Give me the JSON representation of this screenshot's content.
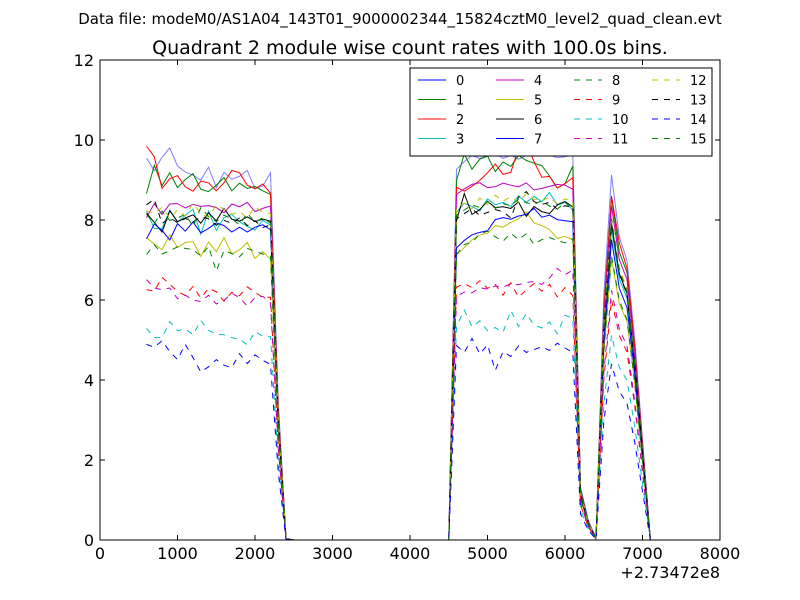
{
  "figure": {
    "suptitle": "Data file: modeM0/AS1A04_143T01_9000002344_15824cztM0_level2_quad_clean.evt"
  },
  "chart_data": {
    "type": "line",
    "title": "Quadrant 2 module wise count rates with 100.0s bins.",
    "xlabel": "",
    "ylabel": "",
    "x_offset_label": "+2.73472e8",
    "xlim": [
      0,
      8000
    ],
    "ylim": [
      0,
      12
    ],
    "x_ticks": [
      0,
      1000,
      2000,
      3000,
      4000,
      5000,
      6000,
      7000,
      8000
    ],
    "y_ticks": [
      0,
      2,
      4,
      6,
      8,
      10,
      12
    ],
    "grid": false,
    "legend_position": "top-right",
    "legend_columns": 4,
    "x": [
      600,
      700,
      800,
      900,
      1000,
      1100,
      1200,
      1300,
      1400,
      1500,
      1600,
      1700,
      1800,
      1900,
      2000,
      2100,
      2200,
      2300,
      2400,
      2500,
      2600,
      2700,
      2800,
      2900,
      3000,
      3100,
      3200,
      3300,
      3400,
      3500,
      3600,
      3700,
      3800,
      3900,
      4000,
      4100,
      4200,
      4300,
      4400,
      4500,
      4600,
      4700,
      4800,
      4900,
      5000,
      5100,
      5200,
      5300,
      5400,
      5500,
      5600,
      5700,
      5800,
      5900,
      6000,
      6100,
      6200,
      6300,
      6400,
      6500,
      6600,
      6700,
      6800,
      6900,
      7000,
      7100
    ],
    "series": [
      {
        "name": "0",
        "color": "#0000ff",
        "dash": "solid",
        "values": [
          9.55,
          9.23,
          9.57,
          9.8,
          9.35,
          9.2,
          9.12,
          9.0,
          9.32,
          8.81,
          9.19,
          9.02,
          9.09,
          9.24,
          8.78,
          8.85,
          9.18,
          3.44,
          0.03,
          0.0,
          0.0,
          0.0,
          0.0,
          0.0,
          0.0,
          0.0,
          0.0,
          0.0,
          0.0,
          0.0,
          0.0,
          0.0,
          0.0,
          0.0,
          0.0,
          0.0,
          0.0,
          0.0,
          0.0,
          0.0,
          9.27,
          9.46,
          9.61,
          9.54,
          9.6,
          9.67,
          9.54,
          9.62,
          9.52,
          9.61,
          9.65,
          9.6,
          9.62,
          9.56,
          9.58,
          9.63,
          1.33,
          0.49,
          0.05,
          6.11,
          9.13,
          7.58,
          6.99,
          4.99,
          2.48,
          0.03
        ]
      },
      {
        "name": "1",
        "color": "#008000",
        "dash": "solid",
        "values": [
          8.66,
          9.37,
          8.86,
          9.18,
          8.81,
          9.01,
          9.16,
          8.77,
          8.71,
          8.87,
          9.06,
          8.73,
          8.92,
          8.79,
          8.84,
          8.73,
          8.64,
          3.22,
          0.03,
          0.0,
          0.0,
          0.0,
          0.0,
          0.0,
          0.0,
          0.0,
          0.0,
          0.0,
          0.0,
          0.0,
          0.0,
          0.0,
          0.0,
          0.0,
          0.0,
          0.0,
          0.0,
          0.0,
          0.0,
          0.0,
          8.99,
          9.65,
          9.27,
          9.52,
          9.6,
          9.21,
          9.45,
          9.34,
          9.61,
          9.49,
          9.42,
          9.36,
          9.1,
          8.8,
          8.91,
          9.35,
          1.28,
          0.46,
          0.04,
          5.73,
          8.57,
          7.2,
          6.69,
          4.77,
          2.39,
          0.03
        ]
      },
      {
        "name": "2",
        "color": "#ff0000",
        "dash": "solid",
        "values": [
          9.85,
          9.58,
          8.79,
          9.03,
          9.11,
          8.83,
          8.72,
          8.97,
          8.93,
          8.73,
          8.93,
          9.24,
          9.18,
          8.87,
          8.78,
          8.9,
          8.67,
          3.26,
          0.03,
          0.0,
          0.0,
          0.0,
          0.0,
          0.0,
          0.0,
          0.0,
          0.0,
          0.0,
          0.0,
          0.0,
          0.0,
          0.0,
          0.0,
          0.0,
          0.0,
          0.0,
          0.0,
          0.0,
          0.0,
          0.0,
          8.82,
          8.72,
          8.84,
          8.99,
          9.18,
          9.4,
          9.14,
          9.19,
          9.79,
          9.92,
          9.46,
          9.07,
          9.09,
          8.8,
          8.91,
          9.06,
          1.24,
          0.45,
          0.04,
          5.72,
          8.6,
          7.43,
          6.79,
          4.81,
          2.41,
          0.03
        ]
      },
      {
        "name": "3",
        "color": "#00bfbf",
        "dash": "solid",
        "values": [
          8.23,
          7.79,
          7.78,
          8.25,
          7.94,
          8.12,
          8.27,
          7.65,
          8.22,
          7.74,
          8.06,
          8.14,
          7.96,
          7.84,
          7.75,
          7.99,
          7.87,
          2.95,
          0.03,
          0.0,
          0.0,
          0.0,
          0.0,
          0.0,
          0.0,
          0.0,
          0.0,
          0.0,
          0.0,
          0.0,
          0.0,
          0.0,
          0.0,
          0.0,
          0.0,
          0.0,
          0.0,
          0.0,
          0.0,
          0.0,
          8.2,
          8.42,
          8.34,
          8.23,
          8.53,
          8.38,
          8.44,
          8.34,
          8.6,
          8.44,
          8.59,
          8.46,
          8.69,
          8.37,
          8.44,
          8.25,
          1.15,
          0.42,
          0.04,
          5.18,
          7.77,
          6.53,
          6.04,
          4.3,
          2.16,
          0.02
        ]
      },
      {
        "name": "4",
        "color": "#bf00bf",
        "dash": "solid",
        "values": [
          8.06,
          8.41,
          8.14,
          8.4,
          8.41,
          8.3,
          8.39,
          8.34,
          8.36,
          8.31,
          8.18,
          8.4,
          8.33,
          8.44,
          8.21,
          8.29,
          8.35,
          3.12,
          0.03,
          0.0,
          0.0,
          0.0,
          0.0,
          0.0,
          0.0,
          0.0,
          0.0,
          0.0,
          0.0,
          0.0,
          0.0,
          0.0,
          0.0,
          0.0,
          0.0,
          0.0,
          0.0,
          0.0,
          0.0,
          0.0,
          8.64,
          8.78,
          8.89,
          8.93,
          8.81,
          8.83,
          8.92,
          8.87,
          8.83,
          8.93,
          8.75,
          8.79,
          8.84,
          8.89,
          8.87,
          8.77,
          1.21,
          0.44,
          0.04,
          5.49,
          8.36,
          7.01,
          6.51,
          4.61,
          2.32,
          0.03
        ]
      },
      {
        "name": "5",
        "color": "#bfbf00",
        "dash": "solid",
        "values": [
          7.56,
          7.4,
          7.26,
          7.63,
          7.31,
          7.44,
          7.46,
          7.09,
          7.45,
          7.21,
          7.56,
          7.15,
          7.25,
          7.44,
          7.04,
          7.21,
          7.02,
          2.71,
          0.03,
          0.0,
          0.0,
          0.0,
          0.0,
          0.0,
          0.0,
          0.0,
          0.0,
          0.0,
          0.0,
          0.0,
          0.0,
          0.0,
          0.0,
          0.0,
          0.0,
          0.0,
          0.0,
          0.0,
          0.0,
          0.0,
          7.13,
          7.31,
          7.51,
          7.62,
          7.67,
          7.86,
          7.82,
          7.94,
          8.03,
          8.2,
          7.93,
          7.86,
          7.76,
          7.54,
          7.59,
          7.51,
          1.04,
          0.38,
          0.04,
          4.68,
          7.04,
          5.91,
          5.47,
          3.9,
          1.95,
          0.02
        ]
      },
      {
        "name": "6",
        "color": "#000000",
        "dash": "solid",
        "values": [
          8.17,
          7.94,
          7.7,
          8.23,
          7.96,
          8.05,
          8.13,
          7.92,
          8.18,
          7.98,
          8.29,
          8.02,
          7.97,
          8.08,
          7.96,
          8.02,
          7.97,
          2.98,
          0.03,
          0.0,
          0.0,
          0.0,
          0.0,
          0.0,
          0.0,
          0.0,
          0.0,
          0.0,
          0.0,
          0.0,
          0.0,
          0.0,
          0.0,
          0.0,
          0.0,
          0.0,
          0.0,
          0.0,
          0.0,
          0.0,
          7.98,
          8.66,
          8.14,
          8.26,
          8.47,
          8.31,
          8.33,
          8.29,
          8.45,
          8.09,
          8.34,
          8.21,
          8.16,
          8.38,
          8.46,
          8.33,
          1.15,
          0.42,
          0.04,
          5.27,
          7.92,
          6.66,
          6.16,
          4.38,
          2.2,
          0.02
        ]
      },
      {
        "name": "7",
        "color": "#0000ff",
        "dash": "solid",
        "values": [
          7.53,
          7.9,
          7.74,
          7.5,
          7.91,
          7.72,
          7.95,
          7.68,
          7.79,
          7.93,
          7.86,
          7.7,
          7.82,
          7.7,
          7.82,
          7.88,
          7.76,
          2.91,
          0.03,
          0.0,
          0.0,
          0.0,
          0.0,
          0.0,
          0.0,
          0.0,
          0.0,
          0.0,
          0.0,
          0.0,
          0.0,
          0.0,
          0.0,
          0.0,
          0.0,
          0.0,
          0.0,
          0.0,
          0.0,
          0.0,
          7.3,
          7.49,
          7.63,
          7.69,
          7.73,
          8.01,
          8.06,
          8.02,
          8.1,
          8.14,
          8.29,
          8.07,
          8.12,
          8.01,
          7.98,
          7.96,
          1.08,
          0.4,
          0.04,
          4.86,
          7.51,
          6.3,
          5.81,
          4.14,
          2.07,
          0.02
        ]
      },
      {
        "name": "8",
        "color": "#008000",
        "dash": "dashed",
        "values": [
          7.14,
          7.38,
          7.15,
          7.23,
          7.33,
          7.29,
          7.26,
          7.1,
          7.34,
          6.72,
          7.24,
          7.16,
          7.08,
          7.29,
          7.22,
          7.15,
          7.1,
          2.68,
          0.03,
          0.0,
          0.0,
          0.0,
          0.0,
          0.0,
          0.0,
          0.0,
          0.0,
          0.0,
          0.0,
          0.0,
          0.0,
          0.0,
          0.0,
          0.0,
          0.0,
          0.0,
          0.0,
          0.0,
          0.0,
          0.0,
          7.13,
          7.39,
          7.44,
          7.65,
          7.72,
          7.58,
          7.47,
          7.67,
          7.51,
          7.66,
          7.39,
          7.51,
          7.56,
          7.49,
          7.43,
          7.53,
          1.03,
          0.38,
          0.04,
          4.7,
          7.1,
          5.99,
          5.51,
          3.91,
          1.96,
          0.02
        ]
      },
      {
        "name": "9",
        "color": "#ff0000",
        "dash": "dashed",
        "values": [
          6.26,
          6.22,
          6.57,
          6.39,
          6.22,
          6.11,
          6.34,
          6.05,
          6.29,
          6.21,
          5.97,
          6.19,
          6.11,
          6.33,
          6.19,
          6.07,
          6.07,
          2.31,
          0.02,
          0.0,
          0.0,
          0.0,
          0.0,
          0.0,
          0.0,
          0.0,
          0.0,
          0.0,
          0.0,
          0.0,
          0.0,
          0.0,
          0.0,
          0.0,
          0.0,
          0.0,
          0.0,
          0.0,
          0.0,
          0.0,
          6.32,
          6.41,
          6.31,
          6.48,
          6.29,
          6.39,
          6.12,
          6.43,
          6.07,
          6.25,
          6.41,
          6.22,
          6.39,
          6.08,
          6.31,
          6.11,
          0.88,
          0.32,
          0.03,
          4.02,
          6.01,
          5.11,
          4.7,
          3.35,
          1.68,
          0.02
        ]
      },
      {
        "name": "10",
        "color": "#00bfbf",
        "dash": "dashed",
        "values": [
          5.29,
          5.06,
          5.06,
          5.46,
          5.23,
          5.28,
          5.13,
          5.49,
          5.24,
          5.14,
          5.13,
          5.06,
          5.02,
          4.88,
          5.21,
          5.09,
          5.08,
          1.93,
          0.02,
          0.0,
          0.0,
          0.0,
          0.0,
          0.0,
          0.0,
          0.0,
          0.0,
          0.0,
          0.0,
          0.0,
          0.0,
          0.0,
          0.0,
          0.0,
          0.0,
          0.0,
          0.0,
          0.0,
          0.0,
          0.0,
          5.34,
          5.75,
          5.33,
          5.48,
          5.23,
          5.31,
          5.19,
          5.74,
          5.34,
          5.66,
          5.38,
          5.3,
          5.45,
          5.16,
          5.62,
          5.54,
          0.75,
          0.28,
          0.03,
          3.39,
          5.12,
          4.32,
          3.99,
          2.83,
          1.42,
          0.02
        ]
      },
      {
        "name": "11",
        "color": "#bf00bf",
        "dash": "dashed",
        "values": [
          6.51,
          6.3,
          6.26,
          6.3,
          6.03,
          6.12,
          6.0,
          5.96,
          6.12,
          5.9,
          5.99,
          6.17,
          6.06,
          5.85,
          6.06,
          6.09,
          5.93,
          2.27,
          0.02,
          0.0,
          0.0,
          0.0,
          0.0,
          0.0,
          0.0,
          0.0,
          0.0,
          0.0,
          0.0,
          0.0,
          0.0,
          0.0,
          0.0,
          0.0,
          0.0,
          0.0,
          0.0,
          0.0,
          0.0,
          0.0,
          6.09,
          6.2,
          6.18,
          6.31,
          6.27,
          6.35,
          6.32,
          6.41,
          6.38,
          6.44,
          6.46,
          6.39,
          6.55,
          6.79,
          6.63,
          6.75,
          0.92,
          0.34,
          0.03,
          4.18,
          6.24,
          5.28,
          4.85,
          3.46,
          1.73,
          0.02
        ]
      },
      {
        "name": "12",
        "color": "#bfbf00",
        "dash": "dashed",
        "values": [
          8.23,
          8.17,
          8.31,
          8.04,
          8.25,
          8.1,
          8.42,
          8.16,
          8.07,
          8.38,
          8.27,
          8.14,
          8.21,
          8.05,
          8.33,
          8.2,
          8.16,
          3.05,
          0.03,
          0.0,
          0.0,
          0.0,
          0.0,
          0.0,
          0.0,
          0.0,
          0.0,
          0.0,
          0.0,
          0.0,
          0.0,
          0.0,
          0.0,
          0.0,
          0.0,
          0.0,
          0.0,
          0.0,
          0.0,
          0.0,
          8.31,
          8.42,
          8.28,
          8.55,
          8.39,
          8.62,
          8.47,
          8.58,
          8.44,
          8.66,
          8.52,
          8.48,
          8.57,
          8.41,
          8.53,
          8.46,
          1.17,
          0.43,
          0.04,
          5.36,
          8.07,
          6.81,
          6.28,
          4.46,
          2.24,
          0.02
        ]
      },
      {
        "name": "13",
        "color": "#000000",
        "dash": "dashed",
        "values": [
          8.38,
          8.52,
          7.91,
          8.06,
          7.93,
          8.04,
          7.95,
          8.08,
          8.03,
          7.87,
          7.99,
          7.92,
          8.05,
          7.86,
          7.98,
          7.81,
          7.88,
          2.97,
          0.03,
          0.0,
          0.0,
          0.0,
          0.0,
          0.0,
          0.0,
          0.0,
          0.0,
          0.0,
          0.0,
          0.0,
          0.0,
          0.0,
          0.0,
          0.0,
          0.0,
          0.0,
          0.0,
          0.0,
          0.0,
          0.0,
          8.03,
          8.16,
          8.28,
          8.11,
          8.19,
          8.26,
          8.21,
          8.05,
          8.57,
          8.71,
          8.46,
          8.39,
          8.44,
          8.27,
          8.36,
          8.31,
          1.15,
          0.42,
          0.04,
          5.24,
          7.9,
          6.64,
          6.14,
          4.37,
          2.19,
          0.02
        ]
      },
      {
        "name": "14",
        "color": "#0000ff",
        "dash": "dashed",
        "values": [
          4.89,
          4.82,
          4.98,
          4.71,
          4.51,
          4.89,
          4.56,
          4.2,
          4.33,
          4.51,
          4.37,
          4.31,
          4.66,
          4.41,
          4.63,
          4.49,
          4.39,
          1.69,
          0.02,
          0.0,
          0.0,
          0.0,
          0.0,
          0.0,
          0.0,
          0.0,
          0.0,
          0.0,
          0.0,
          0.0,
          0.0,
          0.0,
          0.0,
          0.0,
          0.0,
          0.0,
          0.0,
          0.0,
          0.0,
          0.0,
          4.86,
          4.69,
          5.04,
          4.65,
          4.88,
          4.24,
          4.71,
          4.59,
          4.85,
          4.69,
          4.76,
          4.83,
          4.74,
          4.92,
          4.8,
          4.69,
          0.65,
          0.24,
          0.02,
          2.96,
          4.4,
          3.71,
          3.42,
          2.43,
          1.22,
          0.01
        ]
      },
      {
        "name": "15",
        "color": "#008000",
        "dash": "dashed",
        "values": [
          8.14,
          7.91,
          8.22,
          7.99,
          8.05,
          8.14,
          7.84,
          8.31,
          8.09,
          7.96,
          8.12,
          8.03,
          7.88,
          8.17,
          7.94,
          8.06,
          7.92,
          3.0,
          0.03,
          0.0,
          0.0,
          0.0,
          0.0,
          0.0,
          0.0,
          0.0,
          0.0,
          0.0,
          0.0,
          0.0,
          0.0,
          0.0,
          0.0,
          0.0,
          0.0,
          0.0,
          0.0,
          0.0,
          0.0,
          0.0,
          8.12,
          8.25,
          8.38,
          8.31,
          8.46,
          8.29,
          8.41,
          8.36,
          8.52,
          8.43,
          8.39,
          8.48,
          8.35,
          8.27,
          8.44,
          8.32,
          1.16,
          0.42,
          0.04,
          5.3,
          8.02,
          6.73,
          6.22,
          4.41,
          2.22,
          0.02
        ]
      }
    ]
  }
}
